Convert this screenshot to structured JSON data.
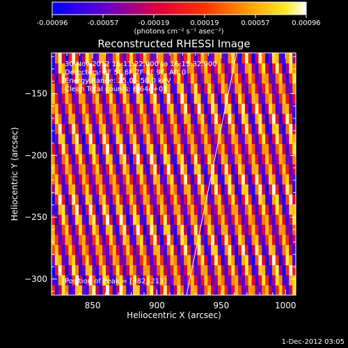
{
  "colorbar": {
    "tick_labels": [
      "-0.00096",
      "-0.00057",
      "-0.00019",
      "0.00019",
      "0.00057",
      "0.00096"
    ],
    "unit_label": "(photons cm⁻² s⁻¹ asec⁻²)",
    "vmin": -0.00096,
    "vmax": 0.00096
  },
  "footer": {
    "date": "1-Dec-2012 03:05"
  },
  "chart_data": {
    "type": "heatmap",
    "title": "Reconstructed RHESSI Image",
    "xlabel": "Heliocentric X (arcsec)",
    "ylabel": "Heliocentric Y (arcsec)",
    "xlim": [
      818,
      1008
    ],
    "ylim": [
      -313,
      -117
    ],
    "x_ticks": [
      850,
      900,
      950,
      1000
    ],
    "y_ticks": [
      -150,
      -200,
      -250,
      -300
    ],
    "annotations": [
      "30-Nov-2012 16:11:22.000 to 16:15:32.000",
      "Detectors: 3F 5F 6F 7F 8F 9F, Att 0",
      "Energy Range: 25.0 - 50.0 keV",
      "Clean    Total counts: 6.64e+03"
    ],
    "peak_label": "Position of Peak = [982,-213]",
    "peak_position": [
      982,
      -213
    ],
    "limb_line": [
      [
        962,
        -117
      ],
      [
        923,
        -313
      ]
    ],
    "stripe_period_arcsec": 11.2,
    "stripe_slope": 0.2
  }
}
